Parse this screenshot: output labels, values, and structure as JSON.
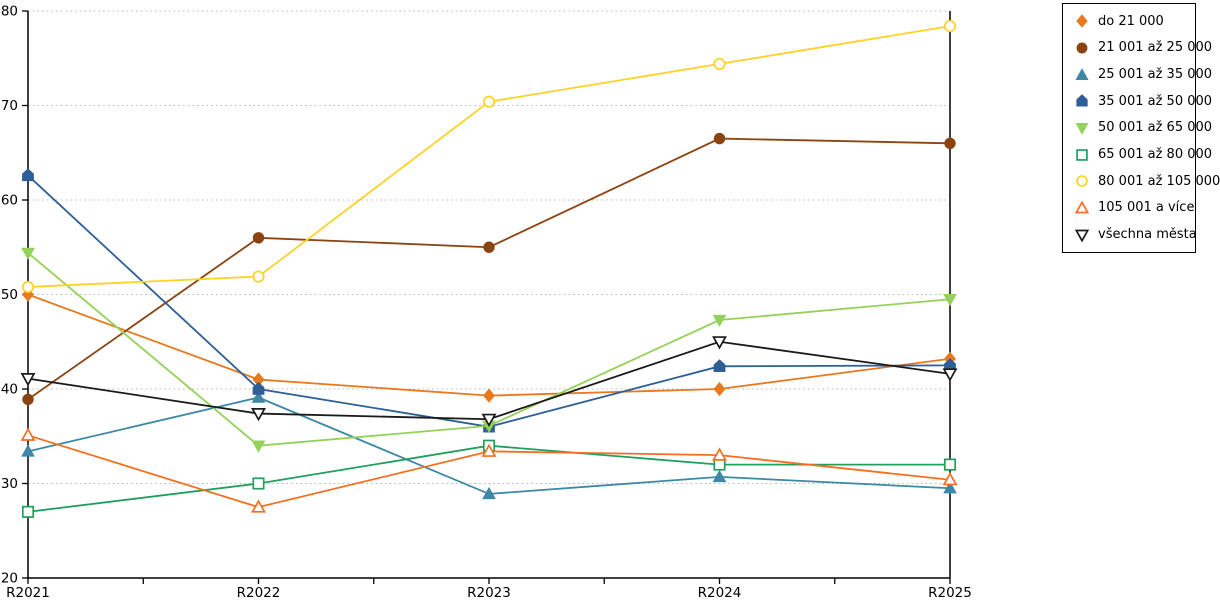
{
  "chart_data": {
    "type": "line",
    "title": "",
    "xlabel": "",
    "ylabel": "",
    "x_categories": [
      "R2021",
      "R2022",
      "R2023",
      "R2024",
      "R2025"
    ],
    "ylim": [
      20,
      80
    ],
    "yticks": [
      20,
      30,
      40,
      50,
      60,
      70,
      80
    ],
    "grid": "horizontal-dotted",
    "legend_position": "outside-top-right",
    "series": [
      {
        "name": "do 21 000",
        "color": "#E8791E",
        "marker": "diamond",
        "fill": "solid",
        "values": [
          50.0,
          41.0,
          39.3,
          40.0,
          43.2
        ]
      },
      {
        "name": "21 001 až 25 000",
        "color": "#8C4312",
        "marker": "circle",
        "fill": "solid",
        "values": [
          38.9,
          56.0,
          55.0,
          66.5,
          66.0
        ]
      },
      {
        "name": "25 001 až 35 000",
        "color": "#3C88A5",
        "marker": "triangle-up",
        "fill": "solid",
        "values": [
          33.4,
          39.1,
          28.9,
          30.7,
          29.5
        ]
      },
      {
        "name": "35 001 až 50 000",
        "color": "#2E5F96",
        "marker": "pentagon",
        "fill": "solid",
        "values": [
          62.6,
          40.0,
          36.0,
          42.4,
          42.5
        ]
      },
      {
        "name": "50 001 až 65 000",
        "color": "#94D159",
        "marker": "triangle-down",
        "fill": "solid",
        "values": [
          54.4,
          34.0,
          36.1,
          47.3,
          49.5
        ]
      },
      {
        "name": "65 001 až 80 000",
        "color": "#1FA05C",
        "marker": "square",
        "fill": "open",
        "values": [
          27.0,
          30.0,
          34.0,
          32.0,
          32.0
        ]
      },
      {
        "name": "80 001 až 105 000",
        "color": "#FFD224",
        "marker": "circle",
        "fill": "open",
        "values": [
          50.8,
          51.9,
          70.4,
          74.4,
          78.4
        ]
      },
      {
        "name": "105 001 a více",
        "color": "#F86E1E",
        "marker": "triangle-up",
        "fill": "open",
        "values": [
          35.1,
          27.5,
          33.4,
          33.0,
          30.4
        ]
      },
      {
        "name": "všechna města",
        "color": "#1A1A1A",
        "marker": "triangle-down",
        "fill": "open",
        "values": [
          41.1,
          37.4,
          36.8,
          45.0,
          41.6
        ]
      }
    ]
  },
  "colors": {
    "axis": "#000000",
    "gridline": "#b5b5b5",
    "background": "#ffffff",
    "open_marker_fill": "#ffffff"
  }
}
